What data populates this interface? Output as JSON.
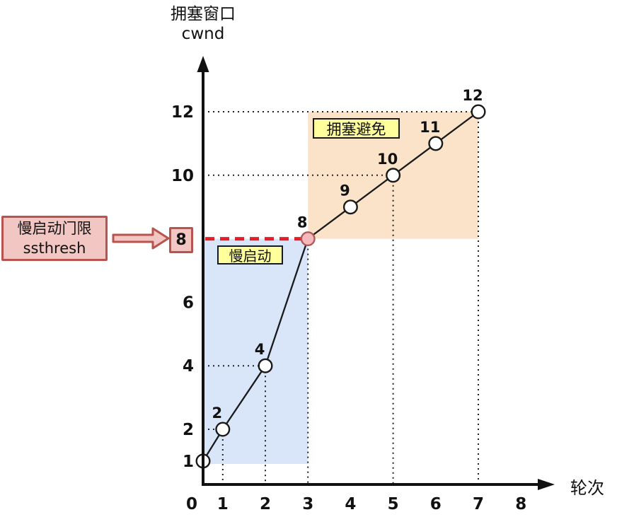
{
  "chart_data": {
    "type": "line",
    "y_axis_title_lines": [
      "拥塞窗口",
      "cwnd"
    ],
    "x_axis_title": "轮次",
    "x_ticks": [
      0,
      1,
      2,
      3,
      4,
      5,
      6,
      7,
      8
    ],
    "y_ticks": [
      1,
      2,
      4,
      6,
      8,
      10,
      12
    ],
    "xlim": [
      0,
      8
    ],
    "ylim": [
      0,
      13
    ],
    "grid": "dotted guide lines from labeled points to axes",
    "points": [
      {
        "x": 0,
        "y": 1
      },
      {
        "x": 1,
        "y": 2,
        "label": "2",
        "grid_h": true,
        "grid_v": true
      },
      {
        "x": 2,
        "y": 4,
        "label": "4",
        "grid_h": true,
        "grid_v": true
      },
      {
        "x": 3,
        "y": 8,
        "label": "8",
        "grid_v": true,
        "highlight": true
      },
      {
        "x": 4,
        "y": 9,
        "label": "9"
      },
      {
        "x": 5,
        "y": 10,
        "label": "10",
        "grid_h": true,
        "grid_v": true
      },
      {
        "x": 6,
        "y": 11,
        "label": "11"
      },
      {
        "x": 7,
        "y": 12,
        "label": "12",
        "grid_h": true,
        "grid_v": true
      }
    ],
    "regions": [
      {
        "id": "slow-start",
        "label": "慢启动",
        "x_start": 0,
        "x_end": 3,
        "y_top": 8,
        "y_bottom": 1,
        "color": "#d9e5f8"
      },
      {
        "id": "congestion-avoidance",
        "label": "拥塞避免",
        "x_start": 3,
        "x_end": 7,
        "y_top": 12,
        "y_bottom": 8,
        "color": "#fbe3c9"
      }
    ],
    "ssthresh": {
      "label_lines": [
        "慢启动门限",
        "ssthresh"
      ],
      "value": "8",
      "line_style": "dashed",
      "line_color": "#e41e26",
      "line_x_start": 0,
      "line_x_end": 3
    },
    "colors": {
      "slow_start_region": "#d9e5f8",
      "congestion_avoidance_region": "#fbe3c9",
      "region_label_bg": "#ffff9c",
      "ssthresh_box_bg": "#f2c7c3",
      "ssthresh_box_border": "#b8534e",
      "ssthresh_dash": "#e41e26",
      "highlight_point_fill": "#f5b9bd",
      "highlight_point_stroke": "#b05a58",
      "point_fill": "#ffffff",
      "line": "#1a1a1a"
    }
  }
}
